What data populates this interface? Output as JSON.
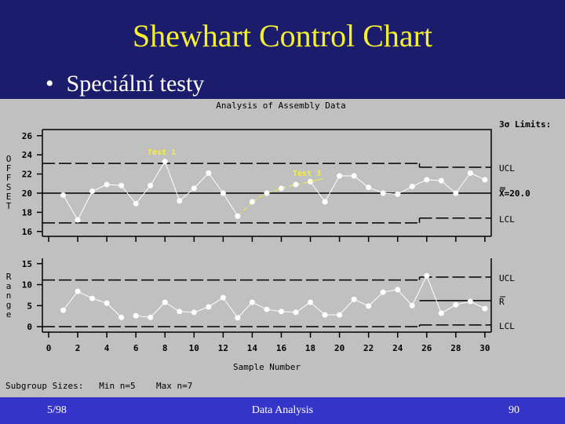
{
  "slide": {
    "title": "Shewhart Control Chart",
    "bullet": "Speciální testy",
    "bullet_glyph": "•",
    "colors": {
      "background": "#1c1c6c",
      "title": "#f4f030",
      "panel": "#c0c0c0",
      "footer": "#3434c8",
      "annotation": "#f4f030",
      "series": "#ffffff"
    }
  },
  "footer": {
    "date": "5/98",
    "center": "Data Analysis",
    "page": "90"
  },
  "panel": {
    "title": "Analysis of Assembly Data",
    "limits_header": "3σ Limits:",
    "top_ylabel": "OFFSET",
    "bottom_ylabel": "Range",
    "xlabel": "Sample Number",
    "subgroup_text": "Subgroup Sizes:   Min n=5    Max n=7",
    "top_labels": {
      "ucl": "UCL",
      "center": "X=20.0",
      "lcl": "LCL"
    },
    "bottom_labels": {
      "ucl": "UCL",
      "center": "R",
      "lcl": "LCL"
    },
    "annotations": [
      "Test 1",
      "Test 3"
    ]
  },
  "chart_data": [
    {
      "type": "line",
      "title": "Analysis of Assembly Data — Mean chart",
      "xlabel": "Sample Number",
      "ylabel": "OFFSET",
      "x": [
        1,
        2,
        3,
        4,
        5,
        6,
        7,
        8,
        9,
        10,
        11,
        12,
        13,
        14,
        15,
        16,
        17,
        18,
        19,
        20,
        21,
        22,
        23,
        24,
        25,
        26,
        27,
        28,
        29,
        30
      ],
      "series": [
        {
          "name": "Subgroup mean",
          "values": [
            19.8,
            17.2,
            20.2,
            20.9,
            20.8,
            18.9,
            20.8,
            23.3,
            19.2,
            20.5,
            22.1,
            20.0,
            17.6,
            19.1,
            20.0,
            20.5,
            20.9,
            21.2,
            19.1,
            21.8,
            21.8,
            20.6,
            20.0,
            19.9,
            20.7,
            21.4,
            21.3,
            20.0,
            22.1,
            21.4
          ]
        }
      ],
      "center_line": 20.0,
      "ucl": [
        {
          "from": 0,
          "to": 25.5,
          "value": 23.1
        },
        {
          "from": 25.5,
          "to": 30,
          "value": 22.7
        }
      ],
      "lcl": [
        {
          "from": 0,
          "to": 25.5,
          "value": 16.9
        },
        {
          "from": 25.5,
          "to": 30,
          "value": 17.4
        }
      ],
      "annotations": [
        {
          "text": "Test 1",
          "x": 8
        },
        {
          "text": "Test 3",
          "x": 13,
          "to_x": 18
        }
      ],
      "yticks": [
        16,
        18,
        20,
        22,
        24,
        26
      ],
      "ylim": [
        15.6,
        26.8
      ],
      "xlim": [
        0,
        30
      ]
    },
    {
      "type": "line",
      "title": "Analysis of Assembly Data — Range chart",
      "xlabel": "Sample Number",
      "ylabel": "Range",
      "x": [
        1,
        2,
        3,
        4,
        5,
        6,
        7,
        8,
        9,
        10,
        11,
        12,
        13,
        14,
        15,
        16,
        17,
        18,
        19,
        20,
        21,
        22,
        23,
        24,
        25,
        26,
        27,
        28,
        29,
        30
      ],
      "series": [
        {
          "name": "Subgroup range",
          "values": [
            3.9,
            8.4,
            6.7,
            5.6,
            2.2,
            2.6,
            2.2,
            5.8,
            3.6,
            3.4,
            4.7,
            6.9,
            2.1,
            5.8,
            4.1,
            3.6,
            3.4,
            5.8,
            2.8,
            2.8,
            6.5,
            4.9,
            8.2,
            8.8,
            5.0,
            12.1,
            3.2,
            5.2,
            6.0,
            4.3
          ]
        }
      ],
      "center_line": [
        {
          "from": 25.5,
          "to": 30,
          "value": 6.2
        }
      ],
      "ucl": [
        {
          "from": 0,
          "to": 25.5,
          "value": 11.1
        },
        {
          "from": 25.5,
          "to": 30,
          "value": 11.8
        }
      ],
      "lcl": [
        {
          "from": 0,
          "to": 25.5,
          "value": 0
        },
        {
          "from": 25.5,
          "to": 30,
          "value": 0.4
        }
      ],
      "yticks": [
        0,
        5,
        10,
        15
      ],
      "xticks": [
        0,
        2,
        4,
        6,
        8,
        10,
        12,
        14,
        16,
        18,
        20,
        22,
        24,
        26,
        28,
        30
      ],
      "ylim": [
        -1.5,
        16
      ],
      "xlim": [
        0,
        30
      ]
    }
  ]
}
